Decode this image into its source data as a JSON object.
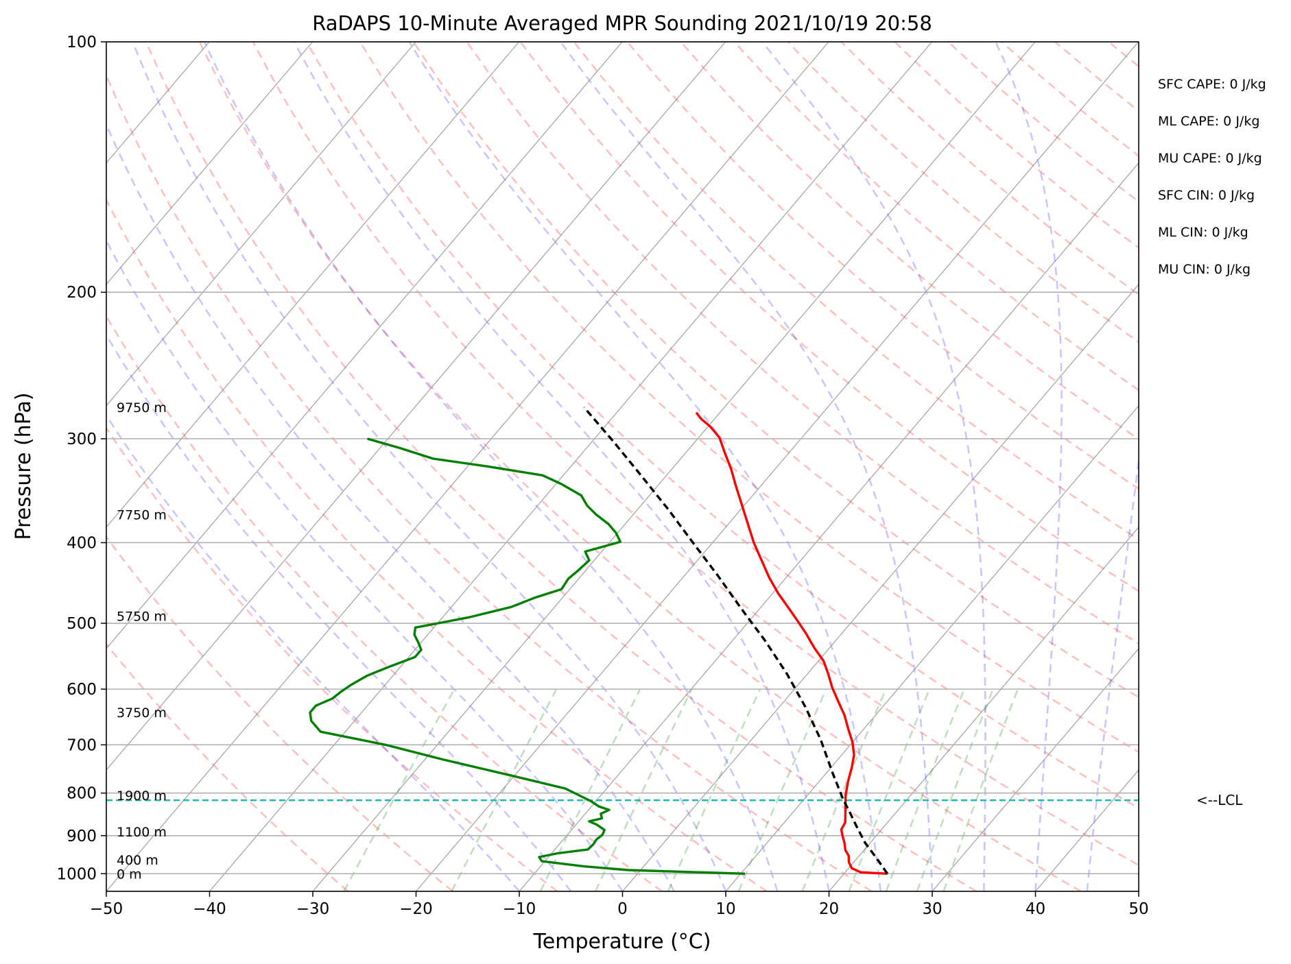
{
  "chart_data": {
    "type": "line",
    "subtype": "skew-T log-P sounding diagram",
    "title": "RaDAPS 10-Minute Averaged MPR Sounding 2021/10/19 20:58",
    "xlabel": "Temperature (°C)",
    "ylabel": "Pressure (hPa)",
    "xlim": [
      -50,
      50
    ],
    "ylim": [
      1050,
      100
    ],
    "y_scale": "log",
    "x_ticks": [
      "−50",
      "−40",
      "−30",
      "−20",
      "−10",
      "0",
      "10",
      "20",
      "30",
      "40",
      "50"
    ],
    "y_ticks": [
      "100",
      "200",
      "300",
      "400",
      "500",
      "600",
      "700",
      "800",
      "900",
      "1000"
    ],
    "height_labels": [
      {
        "text": "9750 m",
        "p": 275
      },
      {
        "text": "7750 m",
        "p": 370
      },
      {
        "text": "5750 m",
        "p": 490
      },
      {
        "text": "3750 m",
        "p": 640
      },
      {
        "text": "1900 m",
        "p": 805
      },
      {
        "text": "1100 m",
        "p": 890
      },
      {
        "text": "400 m",
        "p": 962
      },
      {
        "text": "0 m",
        "p": 1000
      }
    ],
    "indices": [
      {
        "label": "SFC CAPE: 0 J/kg"
      },
      {
        "label": "ML CAPE: 0 J/kg"
      },
      {
        "label": "MU CAPE: 0 J/kg"
      },
      {
        "label": "SFC CIN: 0 J/kg"
      },
      {
        "label": "ML CIN: 0 J/kg"
      },
      {
        "label": "MU CIN: 0 J/kg"
      }
    ],
    "lcl": {
      "label": "<--LCL",
      "p": 816
    },
    "series": [
      {
        "color": "#ff0000",
        "points": [
          [
            24.2,
            1000
          ],
          [
            21.5,
            996
          ],
          [
            20.3,
            985
          ],
          [
            19.5,
            968
          ],
          [
            19.0,
            952
          ],
          [
            18.2,
            937
          ],
          [
            17.5,
            918
          ],
          [
            16.8,
            902
          ],
          [
            16.1,
            885
          ],
          [
            15.9,
            868
          ],
          [
            15.3,
            850
          ],
          [
            14.6,
            830
          ],
          [
            13.7,
            805
          ],
          [
            12.8,
            775
          ],
          [
            12.0,
            745
          ],
          [
            11.2,
            720
          ],
          [
            10.0,
            695
          ],
          [
            8.5,
            670
          ],
          [
            7.0,
            645
          ],
          [
            5.2,
            620
          ],
          [
            3.5,
            597
          ],
          [
            2.0,
            575
          ],
          [
            0.5,
            555
          ],
          [
            -1.5,
            535
          ],
          [
            -3.4,
            515
          ],
          [
            -5.5,
            495
          ],
          [
            -7.4,
            478
          ],
          [
            -9.5,
            460
          ],
          [
            -11.7,
            440
          ],
          [
            -13.8,
            420
          ],
          [
            -16.0,
            400
          ],
          [
            -18.1,
            380
          ],
          [
            -20.3,
            360
          ],
          [
            -22.4,
            342
          ],
          [
            -24.3,
            326
          ],
          [
            -26.2,
            312
          ],
          [
            -28.0,
            299
          ],
          [
            -29.8,
            290
          ],
          [
            -31.3,
            284
          ],
          [
            -32.3,
            279
          ]
        ]
      },
      {
        "color": "#008000",
        "points": [
          [
            10.4,
            1000
          ],
          [
            -1.2,
            990
          ],
          [
            -5.8,
            980
          ],
          [
            -10.3,
            966
          ],
          [
            -10.9,
            955
          ],
          [
            -9.4,
            945
          ],
          [
            -6.8,
            935
          ],
          [
            -6.7,
            922
          ],
          [
            -6.8,
            910
          ],
          [
            -6.6,
            898
          ],
          [
            -6.8,
            886
          ],
          [
            -8.0,
            873
          ],
          [
            -9.0,
            865
          ],
          [
            -8.0,
            858
          ],
          [
            -8.5,
            847
          ],
          [
            -8.0,
            838
          ],
          [
            -9.3,
            830
          ],
          [
            -10.5,
            818
          ],
          [
            -14.0,
            790
          ],
          [
            -20.8,
            760
          ],
          [
            -28.0,
            730
          ],
          [
            -35.0,
            700
          ],
          [
            -42.4,
            675
          ],
          [
            -44.2,
            655
          ],
          [
            -45.0,
            640
          ],
          [
            -45.0,
            628
          ],
          [
            -44.0,
            616
          ],
          [
            -43.7,
            604
          ],
          [
            -43.3,
            593
          ],
          [
            -42.5,
            578
          ],
          [
            -41.0,
            563
          ],
          [
            -39.4,
            549
          ],
          [
            -39.4,
            538
          ],
          [
            -40.3,
            527
          ],
          [
            -41.3,
            516
          ],
          [
            -41.8,
            506
          ],
          [
            -37.5,
            492
          ],
          [
            -34.2,
            478
          ],
          [
            -32.7,
            466
          ],
          [
            -30.8,
            455
          ],
          [
            -31.0,
            442
          ],
          [
            -30.7,
            431
          ],
          [
            -30.5,
            420
          ],
          [
            -31.6,
            410
          ],
          [
            -29.0,
            399
          ],
          [
            -30.2,
            389
          ],
          [
            -31.6,
            380
          ],
          [
            -33.6,
            370
          ],
          [
            -35.2,
            361
          ],
          [
            -36.6,
            351
          ],
          [
            -39.5,
            340
          ],
          [
            -42.0,
            332
          ],
          [
            -48.0,
            324
          ],
          [
            -54.0,
            317
          ],
          [
            -58.0,
            308
          ],
          [
            -62.0,
            300
          ]
        ]
      },
      {
        "color": "#000000",
        "dashed": true,
        "points": [
          [
            24.2,
            1000
          ],
          [
            22.0,
            960
          ],
          [
            19.5,
            918
          ],
          [
            17.2,
            875
          ],
          [
            15.3,
            840
          ],
          [
            13.9,
            816
          ],
          [
            10.5,
            755
          ],
          [
            6.7,
            690
          ],
          [
            2.5,
            630
          ],
          [
            -2.0,
            575
          ],
          [
            -6.8,
            525
          ],
          [
            -11.8,
            480
          ],
          [
            -16.8,
            438
          ],
          [
            -21.9,
            400
          ],
          [
            -27.0,
            365
          ],
          [
            -32.3,
            333
          ],
          [
            -37.8,
            303
          ],
          [
            -43.6,
            275
          ]
        ]
      }
    ],
    "background_lines": {
      "isotherms_color": "#808080",
      "dry_adiabats_color": "#ff0000",
      "moist_adiabats_color": "#0000ff",
      "mixing_ratio_color": "#008000",
      "lcl_line_color": "#00bfbf"
    }
  }
}
